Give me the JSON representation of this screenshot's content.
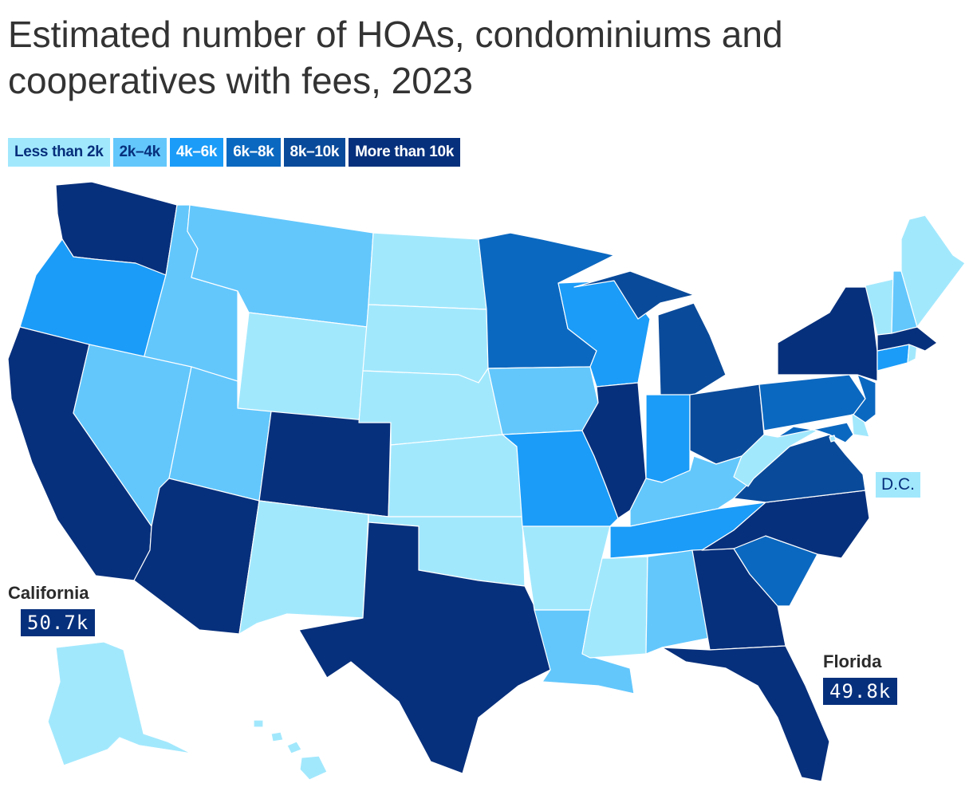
{
  "title": "Estimated number of HOAs, condominiums and cooperatives with fees, 2023",
  "legend": [
    {
      "label": "Less than 2k",
      "color": "#a2e8fd",
      "text_color": "#07307c"
    },
    {
      "label": "2k–4k",
      "color": "#63c7fc",
      "text_color": "#07307c"
    },
    {
      "label": "4k–6k",
      "color": "#1b9cf8",
      "text_color": "#ffffff"
    },
    {
      "label": "6k–8k",
      "color": "#0b68c0",
      "text_color": "#ffffff"
    },
    {
      "label": "8k–10k",
      "color": "#0a4a9a",
      "text_color": "#ffffff"
    },
    {
      "label": "More than 10k",
      "color": "#07307c",
      "text_color": "#ffffff"
    }
  ],
  "map_data": {
    "type": "choropleth",
    "bins": [
      "Less than 2k",
      "2k–4k",
      "4k–6k",
      "6k–8k",
      "8k–10k",
      "More than 10k"
    ],
    "states": {
      "WA": 5,
      "OR": 2,
      "CA": 5,
      "ID": 1,
      "NV": 1,
      "MT": 1,
      "WY": 0,
      "UT": 1,
      "AZ": 5,
      "CO": 5,
      "NM": 0,
      "ND": 0,
      "SD": 0,
      "NE": 0,
      "KS": 0,
      "OK": 0,
      "TX": 5,
      "MN": 3,
      "IA": 1,
      "MO": 2,
      "AR": 0,
      "LA": 1,
      "WI": 2,
      "IL": 5,
      "MI": 4,
      "IN": 2,
      "OH": 4,
      "KY": 1,
      "TN": 2,
      "MS": 0,
      "AL": 1,
      "GA": 5,
      "FL": 5,
      "SC": 3,
      "NC": 5,
      "VA": 4,
      "WV": 0,
      "MD": 3,
      "DE": 0,
      "NJ": 3,
      "PA": 3,
      "NY": 5,
      "VT": 0,
      "NH": 1,
      "ME": 0,
      "MA": 5,
      "CT": 2,
      "RI": 0,
      "AK": 0,
      "HI": 0,
      "DC": 0
    }
  },
  "callouts": {
    "california": {
      "name": "California",
      "value": "50.7k"
    },
    "florida": {
      "name": "Florida",
      "value": "49.8k"
    },
    "dc": {
      "name": "D.C."
    }
  }
}
